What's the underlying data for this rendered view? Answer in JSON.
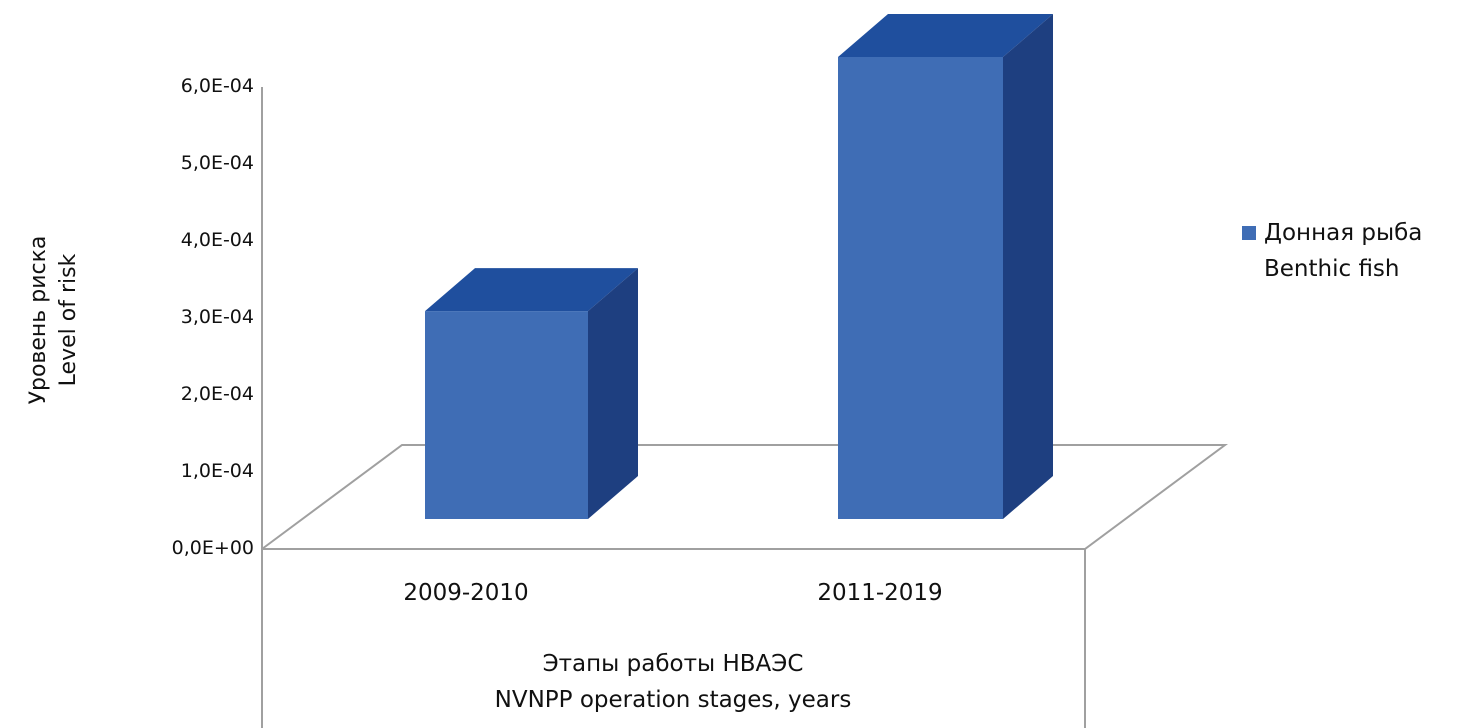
{
  "chart_data": {
    "type": "bar",
    "style": "3d-column",
    "categories": [
      "2009-2010",
      "2011-2019"
    ],
    "series": [
      {
        "name": "Донная рыба\nBenthic fish",
        "values": [
          0.00027,
          0.0006
        ],
        "color": "#3f6db5"
      }
    ],
    "legend_lines": [
      "Донная рыба",
      "Benthic fish"
    ],
    "legend_position": "right",
    "ylabel_lines": [
      "Уровень риска",
      "Level of risk"
    ],
    "xlabel_lines": [
      "Этапы работы НВАЭС",
      "NVNPP operation stages, years"
    ],
    "ylim": [
      0,
      0.0006
    ],
    "yticks": [
      "0,0E+00",
      "1,0E-04",
      "2,0E-04",
      "3,0E-04",
      "4,0E-04",
      "5,0E-04",
      "6,0E-04"
    ],
    "grid": false,
    "colors": {
      "front": "#3f6db5",
      "top": "#1f4f9e",
      "side": "#1e3f80",
      "axis": "#a0a0a0"
    }
  }
}
